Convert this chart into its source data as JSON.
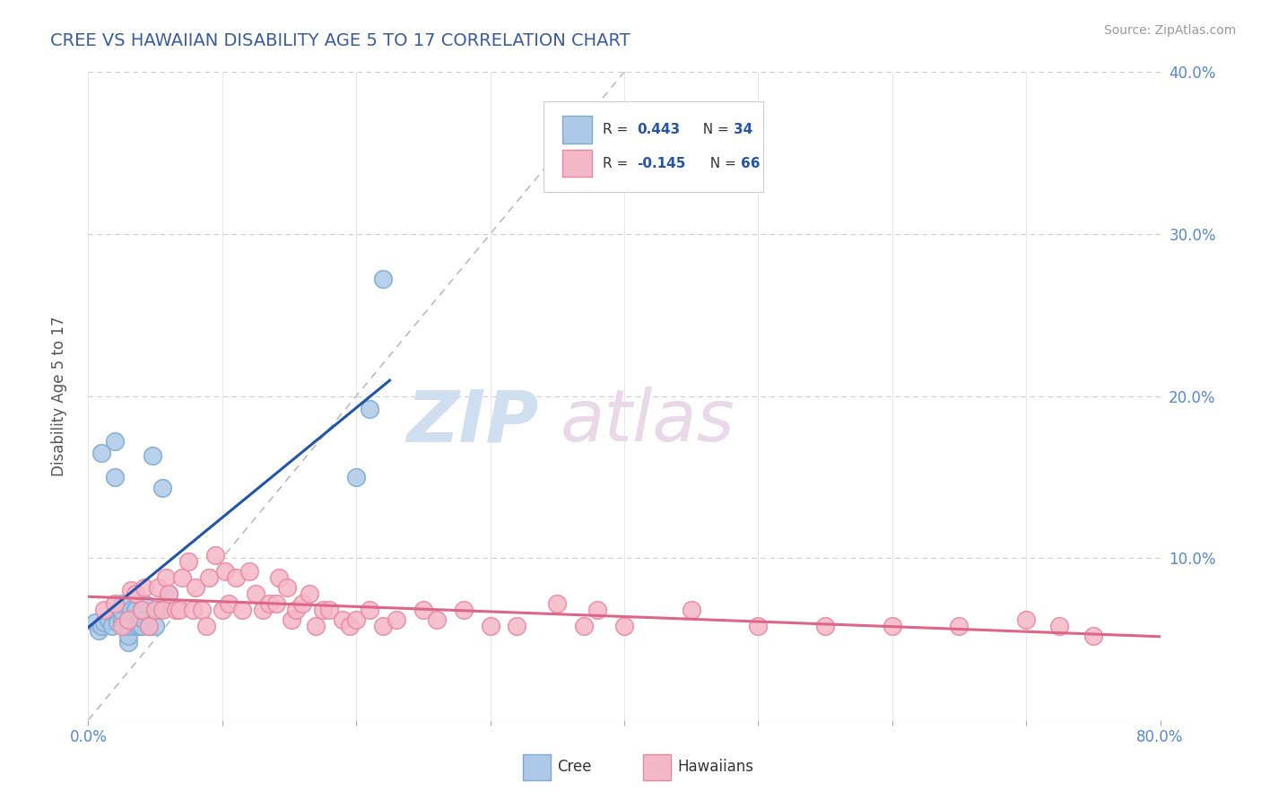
{
  "title": "CREE VS HAWAIIAN DISABILITY AGE 5 TO 17 CORRELATION CHART",
  "source_text": "Source: ZipAtlas.com",
  "ylabel": "Disability Age 5 to 17",
  "xlim": [
    0,
    0.8
  ],
  "ylim": [
    0,
    0.4
  ],
  "xticks": [
    0.0,
    0.1,
    0.2,
    0.3,
    0.4,
    0.5,
    0.6,
    0.7,
    0.8
  ],
  "xticklabels": [
    "0.0%",
    "",
    "",
    "",
    "",
    "",
    "",
    "",
    "80.0%"
  ],
  "yticks": [
    0.0,
    0.1,
    0.2,
    0.3,
    0.4
  ],
  "yticklabels_right": [
    "",
    "10.0%",
    "20.0%",
    "30.0%",
    "40.0%"
  ],
  "title_color": "#3a5ba0",
  "title_fontsize": 14,
  "axis_label_color": "#555555",
  "tick_color": "#5588cc",
  "cree_color": "#aec9e8",
  "cree_edge_color": "#7aaad0",
  "hawaiian_color": "#f5b8c8",
  "hawaiian_edge_color": "#e888a0",
  "cree_line_color": "#2255aa",
  "hawaiian_line_color": "#dd6688",
  "ref_line_color": "#bbbbbb",
  "watermark_zip": "ZIP",
  "watermark_atlas": "atlas",
  "cree_x": [
    0.005,
    0.008,
    0.01,
    0.01,
    0.012,
    0.015,
    0.018,
    0.02,
    0.02,
    0.022,
    0.025,
    0.025,
    0.025,
    0.028,
    0.03,
    0.03,
    0.03,
    0.032,
    0.035,
    0.035,
    0.038,
    0.04,
    0.04,
    0.04,
    0.042,
    0.045,
    0.048,
    0.05,
    0.052,
    0.055,
    0.06,
    0.2,
    0.21,
    0.22
  ],
  "cree_y": [
    0.06,
    0.055,
    0.165,
    0.058,
    0.06,
    0.062,
    0.058,
    0.15,
    0.172,
    0.06,
    0.062,
    0.067,
    0.072,
    0.058,
    0.048,
    0.052,
    0.058,
    0.068,
    0.058,
    0.068,
    0.058,
    0.058,
    0.063,
    0.068,
    0.072,
    0.058,
    0.163,
    0.058,
    0.068,
    0.143,
    0.078,
    0.15,
    0.192,
    0.272
  ],
  "hawaiian_x": [
    0.012,
    0.02,
    0.025,
    0.03,
    0.032,
    0.035,
    0.04,
    0.042,
    0.045,
    0.05,
    0.052,
    0.055,
    0.058,
    0.06,
    0.065,
    0.068,
    0.07,
    0.075,
    0.078,
    0.08,
    0.085,
    0.088,
    0.09,
    0.095,
    0.1,
    0.102,
    0.105,
    0.11,
    0.115,
    0.12,
    0.125,
    0.13,
    0.135,
    0.14,
    0.142,
    0.148,
    0.152,
    0.155,
    0.16,
    0.165,
    0.17,
    0.175,
    0.18,
    0.19,
    0.195,
    0.2,
    0.21,
    0.22,
    0.23,
    0.25,
    0.26,
    0.28,
    0.3,
    0.32,
    0.35,
    0.37,
    0.38,
    0.4,
    0.45,
    0.5,
    0.55,
    0.6,
    0.65,
    0.7,
    0.725,
    0.75
  ],
  "hawaiian_y": [
    0.068,
    0.072,
    0.058,
    0.062,
    0.08,
    0.078,
    0.068,
    0.082,
    0.058,
    0.068,
    0.082,
    0.068,
    0.088,
    0.078,
    0.068,
    0.068,
    0.088,
    0.098,
    0.068,
    0.082,
    0.068,
    0.058,
    0.088,
    0.102,
    0.068,
    0.092,
    0.072,
    0.088,
    0.068,
    0.092,
    0.078,
    0.068,
    0.072,
    0.072,
    0.088,
    0.082,
    0.062,
    0.068,
    0.072,
    0.078,
    0.058,
    0.068,
    0.068,
    0.062,
    0.058,
    0.062,
    0.068,
    0.058,
    0.062,
    0.068,
    0.062,
    0.068,
    0.058,
    0.058,
    0.072,
    0.058,
    0.068,
    0.058,
    0.068,
    0.058,
    0.058,
    0.058,
    0.058,
    0.062,
    0.058,
    0.052
  ]
}
